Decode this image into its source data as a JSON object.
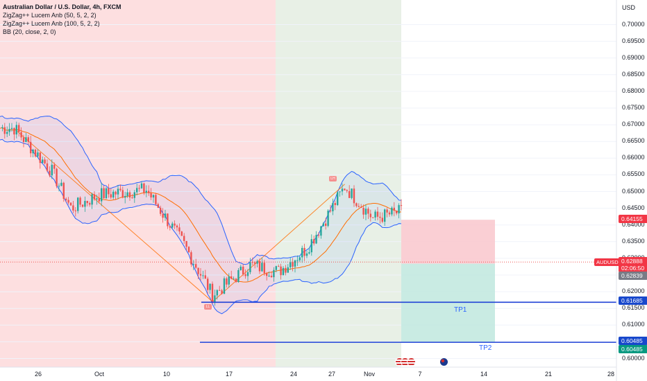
{
  "legend": {
    "title": "Australian Dollar / U.S. Dollar, 4h, FXCM",
    "indicator1": "ZigZag++ Lucem Anb (50, 5, 2, 2)",
    "indicator2": "ZigZag++ Lucem Anb (100, 5, 2, 2)",
    "indicator3": "BB (20, close, 2, 0)"
  },
  "axis": {
    "currency": "USD",
    "y_ticks": [
      "0.70000",
      "0.69500",
      "0.69000",
      "0.68500",
      "0.68000",
      "0.67500",
      "0.67000",
      "0.66500",
      "0.66000",
      "0.65500",
      "0.65000",
      "0.64500",
      "0.64000",
      "0.63500",
      "0.63000",
      "0.62500",
      "0.62000",
      "0.61500",
      "0.61000",
      "0.60500",
      "0.60000"
    ],
    "x_ticks": [
      "26",
      "Oct",
      "10",
      "17",
      "24",
      "27",
      "Nov",
      "7",
      "14",
      "21",
      "28"
    ]
  },
  "price_tags": {
    "stop": "0.64155",
    "symbol": "AUDUSD",
    "last": "0.62888",
    "countdown": "02:06:50",
    "entry": "0.62839",
    "tp1": "0.61685",
    "tp2_a": "0.60485",
    "tp2_b": "0.60485"
  },
  "labels": {
    "tp1": "TP1",
    "tp2": "TP2",
    "zz_high": "LH",
    "zz_low": "LL"
  },
  "colors": {
    "bull": "#26a69a",
    "bear": "#ef5350",
    "band": "#2962ff",
    "basis": "#ff6d00",
    "bg_red": "#fddfe0",
    "bg_green": "#e8f0e6",
    "tp_line": "#1e40d6",
    "stop_tag": "#f23645",
    "tp_tag": "#1848cc",
    "tp2_tag_green": "#089981"
  },
  "chart_data": {
    "type": "candlestick",
    "symbol": "AUDUSD",
    "timeframe": "4h",
    "ylim": [
      0.5995,
      0.7027
    ],
    "levels": {
      "stop": 0.64155,
      "entry": 0.62839,
      "last": 0.62888,
      "tp1": 0.61685,
      "tp2": 0.60485
    },
    "zigzag": [
      {
        "x": "Sep 22",
        "y": 0.6688
      },
      {
        "x": "Oct 13",
        "y": 0.617
      },
      {
        "x": "Oct 27",
        "y": 0.6522
      }
    ],
    "close_path": [
      {
        "x": "Sep 22",
        "y": 0.669
      },
      {
        "x": "Sep 26",
        "y": 0.656
      },
      {
        "x": "Sep 28",
        "y": 0.645
      },
      {
        "x": "Oct 1",
        "y": 0.649
      },
      {
        "x": "Oct 4",
        "y": 0.65
      },
      {
        "x": "Oct 6",
        "y": 0.6505
      },
      {
        "x": "Oct 10",
        "y": 0.634
      },
      {
        "x": "Oct 13",
        "y": 0.619
      },
      {
        "x": "Oct 17",
        "y": 0.628
      },
      {
        "x": "Oct 20",
        "y": 0.626
      },
      {
        "x": "Oct 23",
        "y": 0.633
      },
      {
        "x": "Oct 25",
        "y": 0.642
      },
      {
        "x": "Oct 27",
        "y": 0.6515
      },
      {
        "x": "Oct 30",
        "y": 0.642
      },
      {
        "x": "Nov 2",
        "y": 0.644
      },
      {
        "x": "Nov 4",
        "y": 0.6289
      }
    ]
  }
}
